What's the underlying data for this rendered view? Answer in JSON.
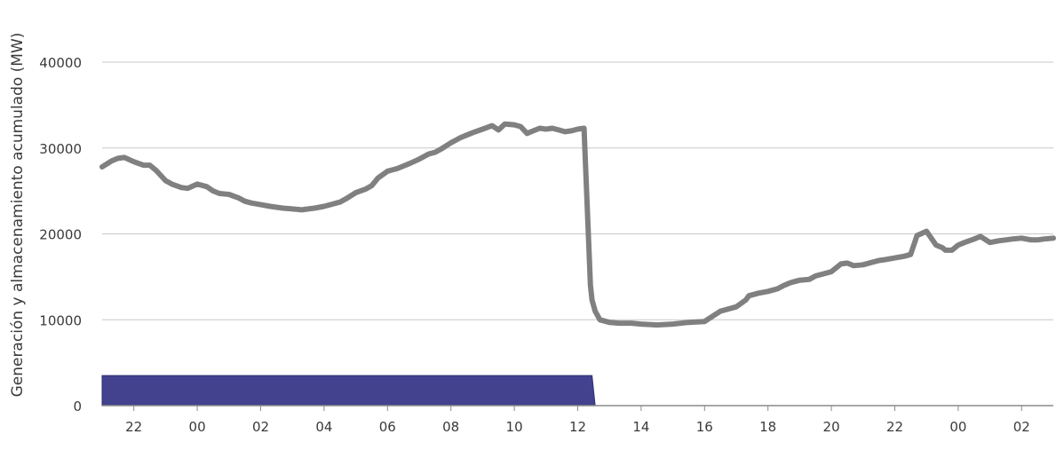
{
  "chart_data": {
    "type": "line",
    "title": "",
    "ylabel": "Generación y almacenamiento acumulado (MW)",
    "xlabel": "",
    "ylim": [
      0,
      40000
    ],
    "yticks": [
      0,
      10000,
      20000,
      30000,
      40000
    ],
    "xlim": [
      21,
      51
    ],
    "xticks": [
      {
        "x": 22,
        "label": "22"
      },
      {
        "x": 24,
        "label": "00"
      },
      {
        "x": 26,
        "label": "02"
      },
      {
        "x": 28,
        "label": "04"
      },
      {
        "x": 30,
        "label": "06"
      },
      {
        "x": 32,
        "label": "08"
      },
      {
        "x": 34,
        "label": "10"
      },
      {
        "x": 36,
        "label": "12"
      },
      {
        "x": 38,
        "label": "14"
      },
      {
        "x": 40,
        "label": "16"
      },
      {
        "x": 42,
        "label": "18"
      },
      {
        "x": 44,
        "label": "20"
      },
      {
        "x": 46,
        "label": "22"
      },
      {
        "x": 48,
        "label": "00"
      },
      {
        "x": 50,
        "label": "02"
      }
    ],
    "grid": true,
    "colors": {
      "line": "#808080",
      "area": "#43428f",
      "grid": "#c8c8c8",
      "axis": "#3a3a3a"
    },
    "series": [
      {
        "kind": "line",
        "x": [
          21,
          21.3,
          21.5,
          21.7,
          22,
          22.3,
          22.5,
          22.7,
          23,
          23.2,
          23.5,
          23.7,
          24,
          24.3,
          24.5,
          24.7,
          25,
          25.3,
          25.5,
          25.7,
          26,
          26.3,
          26.5,
          26.7,
          27,
          27.3,
          27.5,
          27.7,
          28,
          28.3,
          28.5,
          28.7,
          29,
          29.3,
          29.5,
          29.7,
          30,
          30.3,
          30.5,
          30.7,
          31,
          31.3,
          31.5,
          31.7,
          32,
          32.3,
          32.5,
          32.7,
          33,
          33.3,
          33.5,
          33.7,
          34,
          34.2,
          34.4,
          34.6,
          34.8,
          35,
          35.2,
          35.4,
          35.6,
          35.8,
          36,
          36.2,
          36.4,
          36.45,
          36.55,
          36.7,
          37,
          37.3,
          37.5,
          37.7,
          38,
          38.5,
          39,
          39.5,
          40,
          40.5,
          41,
          41.3,
          41.4,
          41.7,
          42,
          42.3,
          42.5,
          42.7,
          43,
          43.3,
          43.5,
          43.7,
          44,
          44.3,
          44.5,
          44.7,
          45,
          45.3,
          45.5,
          45.7,
          46,
          46.3,
          46.5,
          46.7,
          47,
          47.3,
          47.5,
          47.6,
          47.8,
          48,
          48.2,
          48.5,
          48.7,
          49,
          49.3,
          49.5,
          49.7,
          50,
          50.3,
          50.5,
          50.7,
          51
        ],
        "y": [
          27800,
          28500,
          28800,
          28900,
          28400,
          28000,
          28000,
          27400,
          26200,
          25800,
          25400,
          25300,
          25800,
          25500,
          25000,
          24700,
          24600,
          24200,
          23800,
          23600,
          23400,
          23200,
          23100,
          23000,
          22900,
          22800,
          22900,
          23000,
          23200,
          23500,
          23700,
          24100,
          24800,
          25200,
          25600,
          26500,
          27300,
          27600,
          27900,
          28200,
          28700,
          29300,
          29500,
          29900,
          30600,
          31200,
          31500,
          31800,
          32200,
          32600,
          32100,
          32800,
          32700,
          32500,
          31700,
          32000,
          32300,
          32200,
          32300,
          32100,
          31900,
          32000,
          32200,
          32300,
          14000,
          12300,
          11000,
          10000,
          9700,
          9600,
          9600,
          9600,
          9500,
          9400,
          9500,
          9700,
          9800,
          11000,
          11500,
          12300,
          12800,
          13100,
          13300,
          13600,
          14000,
          14300,
          14600,
          14700,
          15100,
          15300,
          15600,
          16500,
          16600,
          16300,
          16400,
          16700,
          16900,
          17000,
          17200,
          17400,
          17600,
          19800,
          20300,
          18700,
          18400,
          18100,
          18100,
          18700,
          19000,
          19400,
          19700,
          19000,
          19200,
          19300,
          19400,
          19500,
          19300,
          19300,
          19400,
          19500
        ]
      },
      {
        "kind": "area",
        "x": [
          21,
          36.45,
          36.55
        ],
        "y": [
          3500,
          3500,
          0
        ]
      }
    ]
  }
}
